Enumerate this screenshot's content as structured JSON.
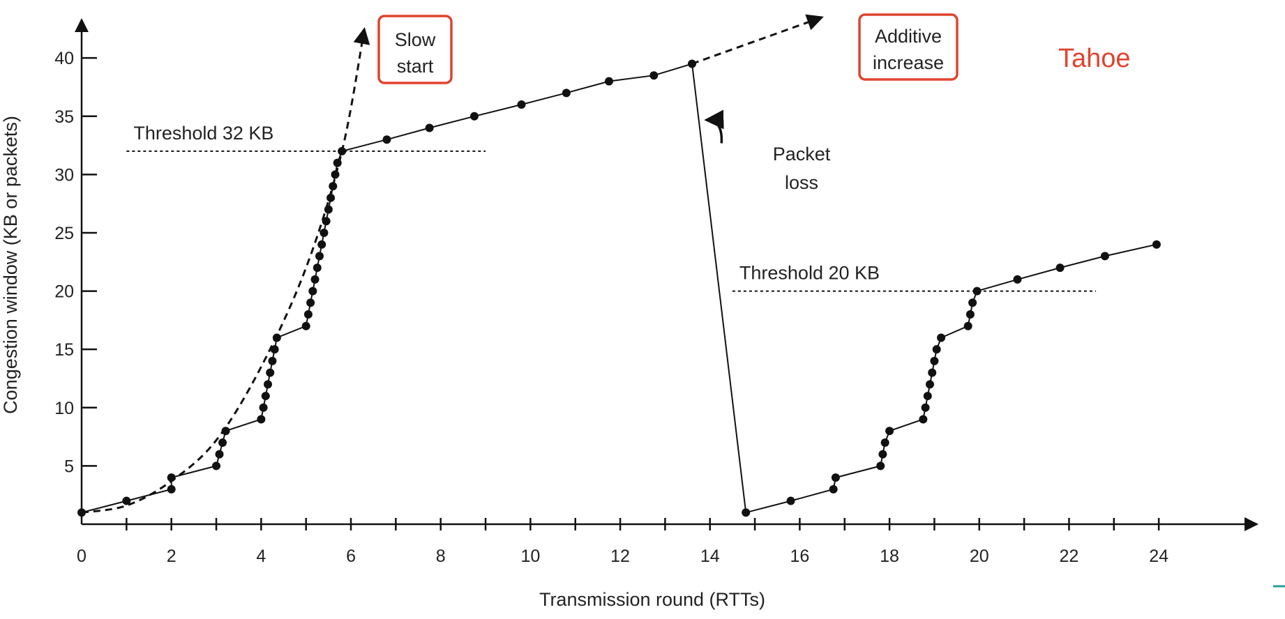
{
  "chart_data": {
    "type": "line",
    "title": "",
    "xlabel": "Transmission round (RTTs)",
    "ylabel": "Congestion window  (KB or packets)",
    "xlim": [
      0,
      24.9
    ],
    "ylim": [
      0,
      43
    ],
    "x_ticks": [
      0,
      2,
      4,
      6,
      8,
      10,
      12,
      14,
      16,
      18,
      20,
      22,
      24
    ],
    "y_ticks": [
      5,
      10,
      15,
      20,
      25,
      30,
      35,
      40
    ],
    "series": [
      {
        "name": "Congestion window",
        "points": [
          [
            0,
            1
          ],
          [
            1,
            2
          ],
          [
            2,
            3
          ],
          [
            2,
            4
          ],
          [
            3,
            5
          ],
          [
            3.07,
            6
          ],
          [
            3.14,
            7
          ],
          [
            3.21,
            8
          ],
          [
            4,
            9
          ],
          [
            4.05,
            10
          ],
          [
            4.1,
            11
          ],
          [
            4.15,
            12
          ],
          [
            4.2,
            13
          ],
          [
            4.25,
            14
          ],
          [
            4.3,
            15
          ],
          [
            4.35,
            16
          ],
          [
            5,
            17
          ],
          [
            5.05,
            18
          ],
          [
            5.1,
            19
          ],
          [
            5.15,
            20
          ],
          [
            5.2,
            21
          ],
          [
            5.25,
            22
          ],
          [
            5.3,
            23
          ],
          [
            5.35,
            24
          ],
          [
            5.4,
            25
          ],
          [
            5.45,
            26
          ],
          [
            5.5,
            27
          ],
          [
            5.55,
            28
          ],
          [
            5.6,
            29
          ],
          [
            5.65,
            30
          ],
          [
            5.7,
            31
          ],
          [
            5.8,
            32
          ],
          [
            6.8,
            33
          ],
          [
            7.75,
            34
          ],
          [
            8.75,
            35
          ],
          [
            9.8,
            36
          ],
          [
            10.8,
            37
          ],
          [
            11.75,
            38
          ],
          [
            12.75,
            38.5
          ],
          [
            13.6,
            39.5
          ],
          [
            14.8,
            1
          ],
          [
            15.8,
            2
          ],
          [
            16.75,
            3
          ],
          [
            16.8,
            4
          ],
          [
            17.8,
            5
          ],
          [
            17.85,
            6
          ],
          [
            17.9,
            7
          ],
          [
            18,
            8
          ],
          [
            18.75,
            9
          ],
          [
            18.8,
            10
          ],
          [
            18.85,
            11
          ],
          [
            18.9,
            12
          ],
          [
            18.95,
            13
          ],
          [
            19,
            14
          ],
          [
            19.05,
            15
          ],
          [
            19.15,
            16
          ],
          [
            19.75,
            17
          ],
          [
            19.8,
            18
          ],
          [
            19.85,
            19
          ],
          [
            19.95,
            20
          ],
          [
            20.85,
            21
          ],
          [
            21.8,
            22
          ],
          [
            22.8,
            23
          ],
          [
            23.95,
            24
          ]
        ]
      }
    ],
    "thresholds": [
      {
        "label": "Threshold 32 KB",
        "value": 32,
        "x_range": [
          1,
          9
        ]
      },
      {
        "label": "Threshold 20 KB",
        "value": 20,
        "x_range": [
          14.5,
          22.6
        ]
      }
    ],
    "slow_start_curve": [
      [
        0,
        1
      ],
      [
        1,
        1.6
      ],
      [
        2,
        3.7
      ],
      [
        3,
        7.2
      ],
      [
        4,
        13.5
      ],
      [
        5,
        22
      ],
      [
        5.8,
        32
      ],
      [
        6.3,
        42.5
      ]
    ],
    "additive_increase_extension": [
      [
        13.6,
        39.5
      ],
      [
        16.5,
        43.5
      ]
    ],
    "packet_loss_arrow": {
      "from": [
        14.35,
        34
      ],
      "to": [
        13.85,
        34.8
      ]
    },
    "annotations": {
      "slow_start": [
        "Slow",
        "start"
      ],
      "additive_increase": [
        "Additive",
        "increase"
      ],
      "packet_loss": [
        "Packet",
        "loss"
      ],
      "tahoe": "Tahoe"
    },
    "colors": {
      "line": "#111111",
      "highlight": "#e0432f",
      "text": "#222222"
    }
  }
}
